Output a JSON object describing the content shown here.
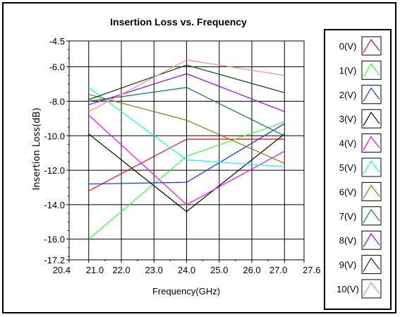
{
  "chart_data": {
    "type": "line",
    "title": "Insertion Loss vs. Frequency",
    "xlabel": "Frequency(GHz)",
    "ylabel": "Insertion Loss(dB)",
    "xlim": [
      20.4,
      27.6
    ],
    "ylim": [
      -17.2,
      -4.5
    ],
    "x_ticks": [
      "20.4",
      "21.0",
      "22.0",
      "23.0",
      "24.0",
      "25.0",
      "26.0",
      "27.0",
      "27.6"
    ],
    "y_ticks": [
      "-4.5",
      "-6.0",
      "-8.0",
      "-10.0",
      "-12.0",
      "-14.0",
      "-16.0",
      "-17.2"
    ],
    "grid": true,
    "legend_position": "right",
    "x": [
      21.0,
      24.0,
      27.0
    ],
    "series": [
      {
        "name": "0(V)",
        "color": "#ff0000",
        "values": [
          -13.2,
          -10.2,
          -10.2
        ]
      },
      {
        "name": "1(V)",
        "color": "#33ff33",
        "values": [
          -16.0,
          -11.2,
          -9.2
        ]
      },
      {
        "name": "2(V)",
        "color": "#0033ff",
        "values": [
          -12.8,
          -12.7,
          -9.3
        ]
      },
      {
        "name": "3(V)",
        "color": "#000000",
        "values": [
          -9.9,
          -14.4,
          -9.9
        ]
      },
      {
        "name": "4(V)",
        "color": "#ff00ff",
        "values": [
          -8.8,
          -14.0,
          -10.9
        ]
      },
      {
        "name": "5(V)",
        "color": "#00ffff",
        "values": [
          -7.2,
          -11.4,
          -11.8
        ]
      },
      {
        "name": "6(V)",
        "color": "#808000",
        "values": [
          -7.6,
          -9.1,
          -11.6
        ]
      },
      {
        "name": "7(V)",
        "color": "#008040",
        "values": [
          -8.0,
          -7.2,
          -10.0
        ]
      },
      {
        "name": "8(V)",
        "color": "#8800ff",
        "values": [
          -8.2,
          -6.4,
          -8.6
        ]
      },
      {
        "name": "9(V)",
        "color": "#004000",
        "values": [
          -7.9,
          -5.9,
          -7.5
        ]
      },
      {
        "name": "10(V)",
        "color": "#ff8888",
        "values": [
          -8.6,
          -5.6,
          -6.5
        ]
      }
    ]
  }
}
